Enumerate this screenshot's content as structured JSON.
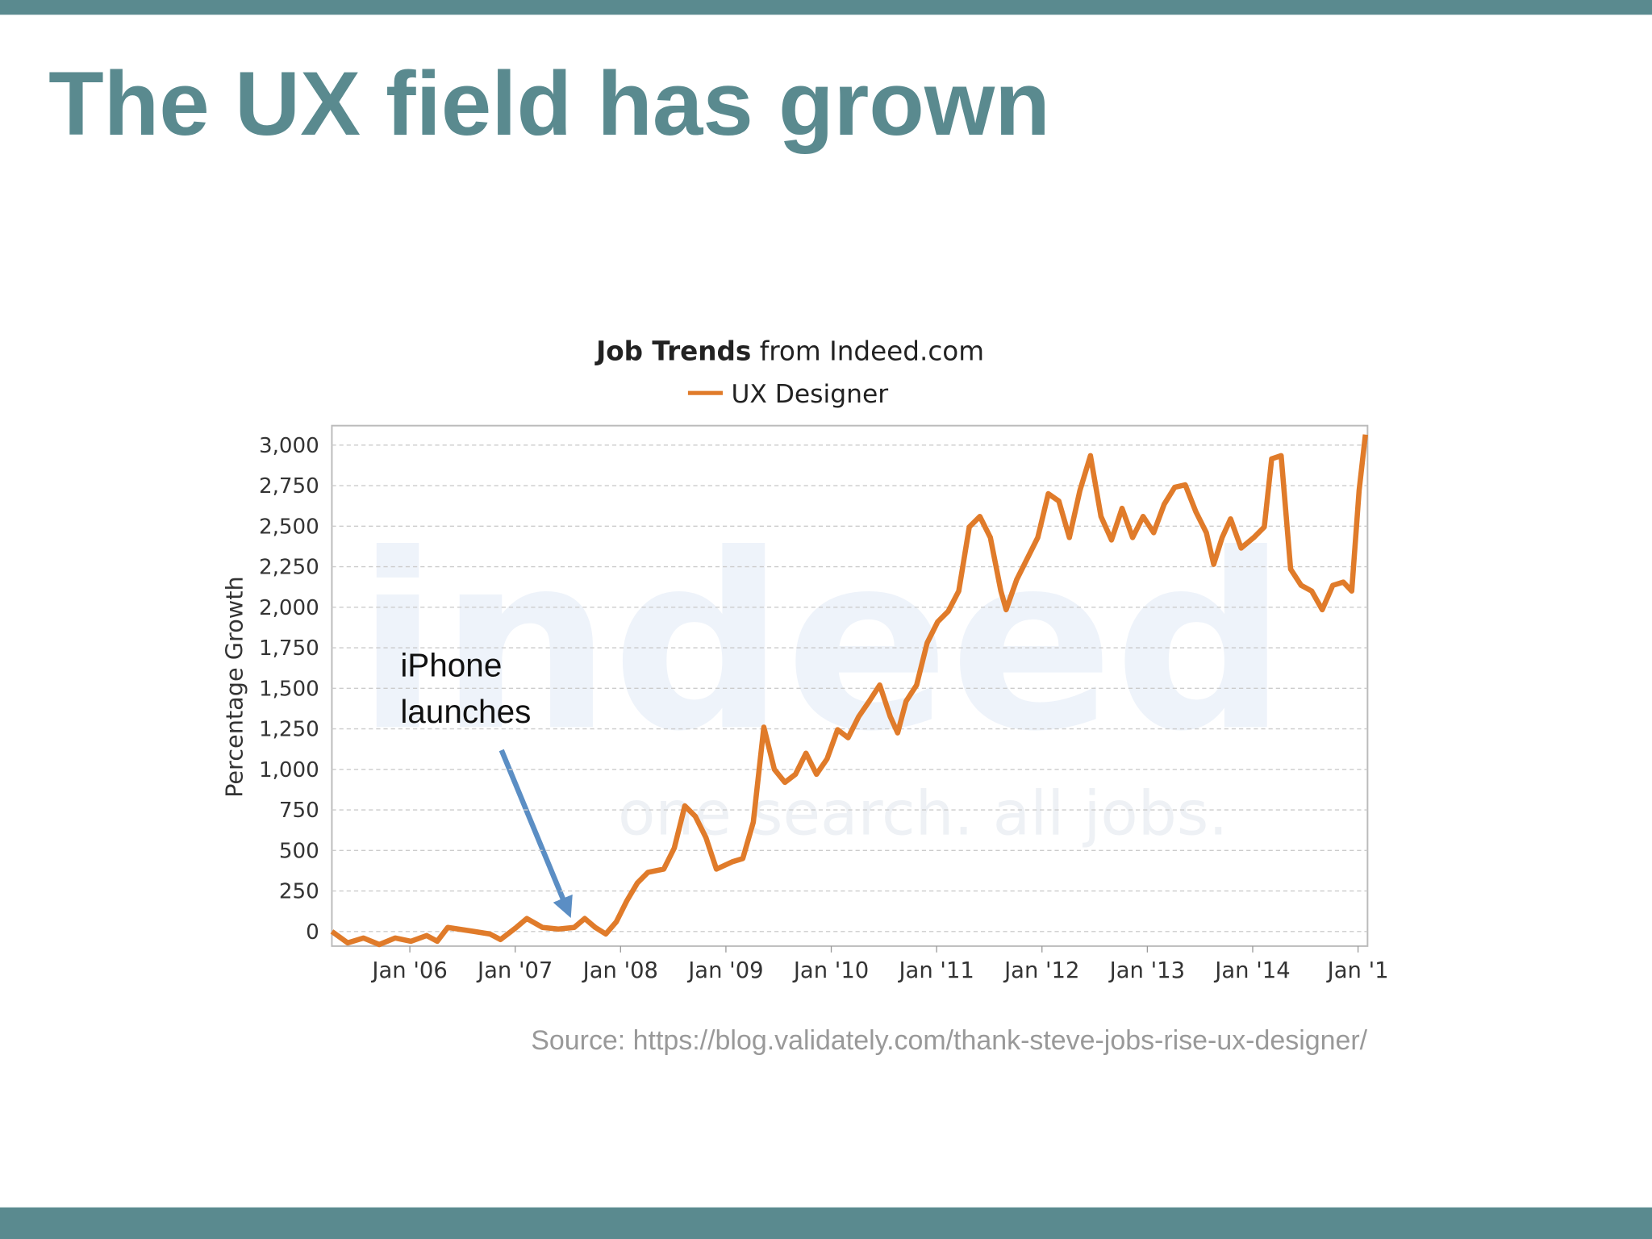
{
  "slide": {
    "title": "The UX field has grown",
    "source": "Source: https://blog.validately.com/thank-steve-jobs-rise-ux-designer/"
  },
  "chart_data": {
    "type": "line",
    "title": [
      "Job Trends",
      "from Indeed.com"
    ],
    "y_label": "Percentage Growth",
    "annotation": [
      "iPhone",
      "launches"
    ],
    "watermark": [
      "indeed",
      "one search. all jobs."
    ],
    "x": [
      2005.26,
      2005.41,
      2005.56,
      2005.71,
      2005.86,
      2006.01,
      2006.16,
      2006.26,
      2006.36,
      2006.46,
      2006.61,
      2006.76,
      2006.86,
      2007.01,
      2007.11,
      2007.26,
      2007.41,
      2007.56,
      2007.66,
      2007.76,
      2007.86,
      2007.96,
      2008.06,
      2008.16,
      2008.26,
      2008.41,
      2008.51,
      2008.61,
      2008.71,
      2008.81,
      2008.91,
      2009.06,
      2009.16,
      2009.26,
      2009.36,
      2009.46,
      2009.56,
      2009.66,
      2009.76,
      2009.86,
      2009.96,
      2010.06,
      2010.16,
      2010.26,
      2010.36,
      2010.46,
      2010.56,
      2010.63,
      2010.71,
      2010.81,
      2010.91,
      2011.01,
      2011.11,
      2011.21,
      2011.31,
      2011.41,
      2011.51,
      2011.61,
      2011.66,
      2011.76,
      2011.86,
      2011.96,
      2012.06,
      2012.16,
      2012.26,
      2012.36,
      2012.46,
      2012.56,
      2012.66,
      2012.76,
      2012.86,
      2012.96,
      2013.06,
      2013.16,
      2013.26,
      2013.36,
      2013.46,
      2013.56,
      2013.63,
      2013.71,
      2013.79,
      2013.89,
      2014.01,
      2014.11,
      2014.18,
      2014.27,
      2014.36,
      2014.46,
      2014.56,
      2014.66,
      2014.76,
      2014.86,
      2014.94,
      2015.01,
      2015.07
    ],
    "series": [
      {
        "name": "UX Designer",
        "color": "#e07b2a",
        "values": [
          0,
          -70,
          -40,
          -80,
          -40,
          -60,
          -25,
          -60,
          25,
          15,
          0,
          -15,
          -50,
          25,
          80,
          25,
          15,
          25,
          80,
          25,
          -15,
          60,
          190,
          300,
          365,
          385,
          515,
          775,
          710,
          580,
          385,
          430,
          450,
          675,
          1260,
          1000,
          920,
          970,
          1100,
          970,
          1065,
          1245,
          1195,
          1325,
          1420,
          1520,
          1325,
          1225,
          1420,
          1520,
          1780,
          1910,
          1975,
          2100,
          2495,
          2560,
          2430,
          2100,
          1985,
          2170,
          2300,
          2430,
          2700,
          2655,
          2430,
          2720,
          2935,
          2560,
          2415,
          2610,
          2430,
          2560,
          2460,
          2635,
          2740,
          2755,
          2590,
          2460,
          2265,
          2430,
          2545,
          2365,
          2430,
          2495,
          2915,
          2935,
          2235,
          2135,
          2100,
          1985,
          2135,
          2155,
          2100,
          2720,
          3065
        ]
      }
    ],
    "xlim": [
      2005.26,
      2015.09
    ],
    "xticks": [
      {
        "value": 2006,
        "label": "Jan '06"
      },
      {
        "value": 2007,
        "label": "Jan '07"
      },
      {
        "value": 2008,
        "label": "Jan '08"
      },
      {
        "value": 2009,
        "label": "Jan '09"
      },
      {
        "value": 2010,
        "label": "Jan '10"
      },
      {
        "value": 2011,
        "label": "Jan '11"
      },
      {
        "value": 2012,
        "label": "Jan '12"
      },
      {
        "value": 2013,
        "label": "Jan '13"
      },
      {
        "value": 2014,
        "label": "Jan '14"
      },
      {
        "value": 2015,
        "label": "Jan '1"
      }
    ],
    "ylim": [
      -90,
      3120
    ],
    "yticks": [
      0,
      250,
      500,
      750,
      {
        "value": 1000,
        "label": "1,000"
      },
      {
        "value": 1250,
        "label": "1,250"
      },
      {
        "value": 1500,
        "label": "1,500"
      },
      {
        "value": 1750,
        "label": "1,750"
      },
      {
        "value": 2000,
        "label": "2,000"
      },
      {
        "value": 2250,
        "label": "2,250"
      },
      {
        "value": 2500,
        "label": "2,500"
      },
      {
        "value": 2750,
        "label": "2,750"
      },
      {
        "value": 3000,
        "label": "3,000"
      }
    ],
    "grid": true
  }
}
